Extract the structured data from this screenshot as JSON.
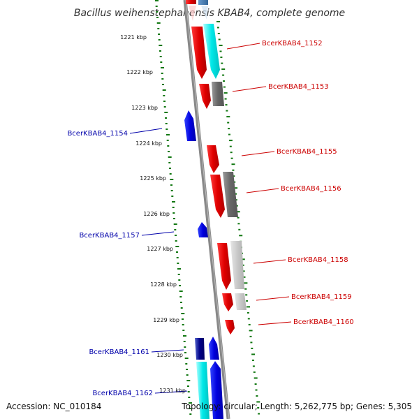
{
  "title": "Bacillus weihenstephanensis KBAB4, complete genome",
  "footer": {
    "accession": "Accession: NC_010184",
    "topology": "Topology: circular; Length: 5,262,775 bp; Genes: 5,305"
  },
  "ruler": [
    "1221 kbp",
    "1222 kbp",
    "1223 kbp",
    "1224 kbp",
    "1225 kbp",
    "1226 kbp",
    "1227 kbp",
    "1228 kbp",
    "1229 kbp",
    "1230 kbp",
    "1231 kbp"
  ],
  "labels_right": [
    "BcerKBAB4_1152",
    "BcerKBAB4_1153",
    "BcerKBAB4_1155",
    "BcerKBAB4_1156",
    "BcerKBAB4_1158",
    "BcerKBAB4_1159",
    "BcerKBAB4_1160"
  ],
  "labels_left": [
    "BcerKBAB4_1154",
    "BcerKBAB4_1157",
    "BcerKBAB4_1161",
    "BcerKBAB4_1162"
  ],
  "colors": {
    "forward_gene": "#ee0000",
    "reverse_gene": "#0000dd",
    "label_right": "#cc0000",
    "label_left": "#0000aa",
    "ruler_dots": "#117711",
    "backbone": "#888888"
  }
}
